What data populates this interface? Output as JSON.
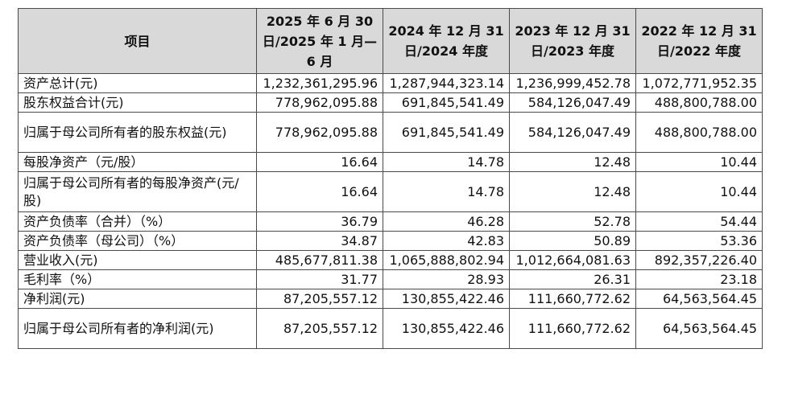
{
  "header": [
    "项目",
    "2025 年 6 月 30 日/2025 年 1 月—6 月",
    "2024 年 12 月 31 日/2024 年度",
    "2023 年 12 月 31 日/2023 年度",
    "2022 年 12 月 31 日/2022 年度"
  ],
  "rows": [
    {
      "label": "资产总计(元)",
      "values": [
        "1,232,361,295.96",
        "1,287,944,323.14",
        "1,236,999,452.78",
        "1,072,771,952.35"
      ]
    },
    {
      "label": "股东权益合计(元)",
      "values": [
        "778,962,095.88",
        "691,845,541.49",
        "584,126,047.49",
        "488,800,788.00"
      ]
    },
    {
      "label": "归属于母公司所有者的股东权益(元)",
      "values": [
        "778,962,095.88",
        "691,845,541.49",
        "584,126,047.49",
        "488,800,788.00"
      ]
    },
    {
      "label": "每股净资产（元/股）",
      "values": [
        "16.64",
        "14.78",
        "12.48",
        "10.44"
      ]
    },
    {
      "label": "归属于母公司所有者的每股净资产(元/股)",
      "values": [
        "16.64",
        "14.78",
        "12.48",
        "10.44"
      ]
    },
    {
      "label": "资产负债率（合并）（%）",
      "values": [
        "36.79",
        "46.28",
        "52.78",
        "54.44"
      ]
    },
    {
      "label": "资产负债率（母公司）（%）",
      "values": [
        "34.87",
        "42.83",
        "50.89",
        "53.36"
      ]
    },
    {
      "label": "营业收入(元)",
      "values": [
        "485,677,811.38",
        "1,065,888,802.94",
        "1,012,664,081.63",
        "892,357,226.40"
      ]
    },
    {
      "label": "毛利率（%）",
      "values": [
        "31.77",
        "28.93",
        "26.31",
        "23.18"
      ]
    },
    {
      "label": "净利润(元)",
      "values": [
        "87,205,557.12",
        "130,855,422.46",
        "111,660,772.62",
        "64,563,564.45"
      ]
    },
    {
      "label": "归属于母公司所有者的净利润(元)",
      "values": [
        "87,205,557.12",
        "130,855,422.46",
        "111,660,772.62",
        "64,563,564.45"
      ]
    }
  ]
}
